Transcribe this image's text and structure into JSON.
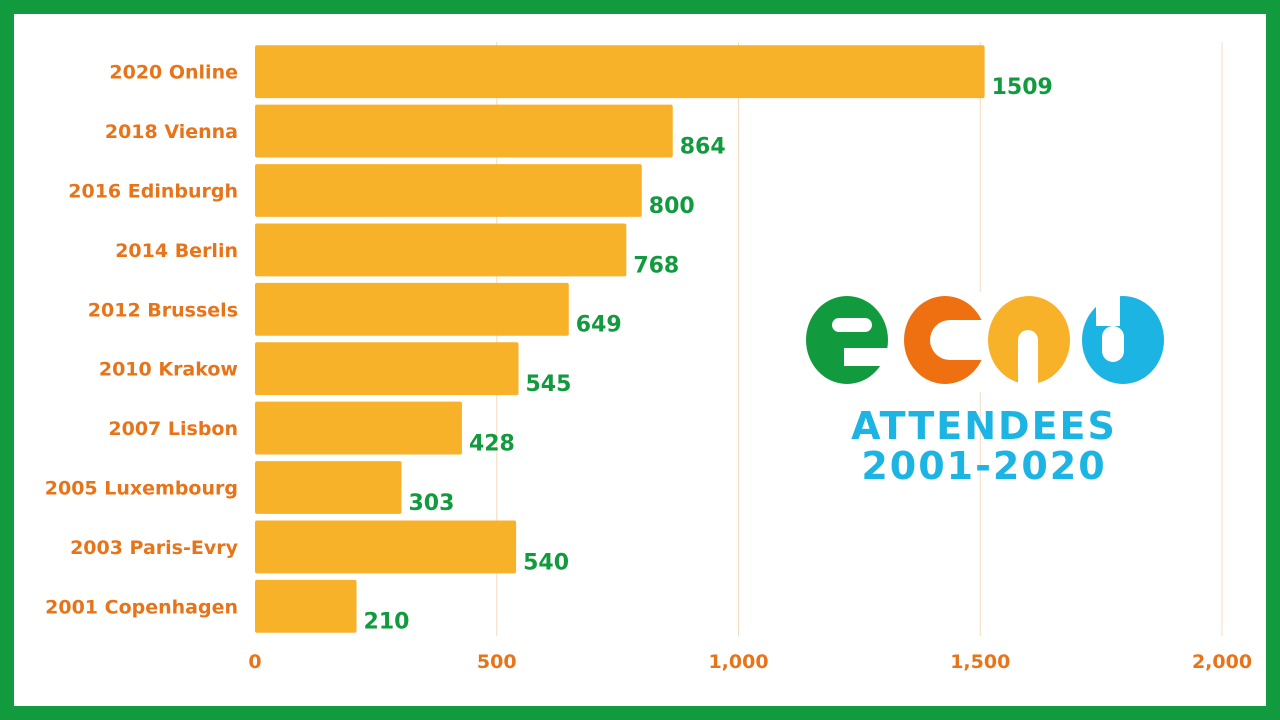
{
  "colors": {
    "border": "#129a3e",
    "bar": "#f8b22a",
    "category_label": "#e8741a",
    "value_label": "#129a3e",
    "grid": "#f4dcc0",
    "logo_e": "#129a3e",
    "logo_c": "#ee7010",
    "logo_r": "#f8b22a",
    "logo_d": "#1cb4e2",
    "logo_text": "#1cb4e2"
  },
  "logo": {
    "name": "ecrd",
    "line1": "ATTENDEES",
    "line2": "2001-2020"
  },
  "chart_data": {
    "type": "bar",
    "orientation": "horizontal",
    "categories": [
      "2020 Online",
      "2018 Vienna",
      "2016 Edinburgh",
      "2014 Berlin",
      "2012 Brussels",
      "2010 Krakow",
      "2007 Lisbon",
      "2005 Luxembourg",
      "2003 Paris-Evry",
      "2001 Copenhagen"
    ],
    "values": [
      1509,
      864,
      800,
      768,
      649,
      545,
      428,
      303,
      540,
      210
    ],
    "data_labels": [
      "1509",
      "864",
      "800",
      "768",
      "649",
      "545",
      "428",
      "303",
      "540",
      "210"
    ],
    "xlim": [
      0,
      2000
    ],
    "xticks": [
      0,
      500,
      1000,
      1500,
      2000
    ],
    "xtick_labels": [
      "0",
      "500",
      "1,000",
      "1,500",
      "2,000"
    ],
    "grid": "vertical",
    "title": "",
    "xlabel": "",
    "ylabel": ""
  }
}
